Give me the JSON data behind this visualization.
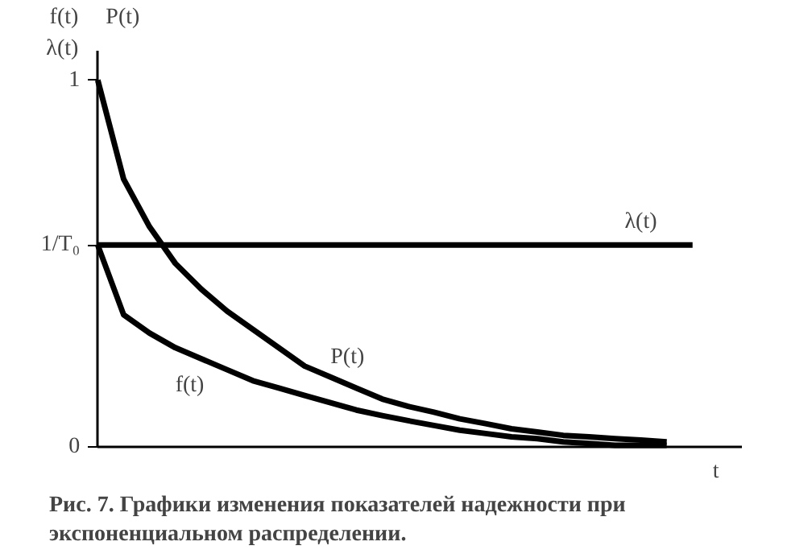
{
  "chart_data": {
    "type": "line",
    "xlabel": "t",
    "ylabel": "f(t)\nλ(t)",
    "categories": [
      null,
      null,
      null,
      null,
      null,
      null,
      null,
      null,
      null,
      null,
      null,
      null,
      null,
      null,
      null,
      null,
      null,
      null,
      null,
      null,
      null,
      null,
      null,
      null
    ],
    "series": [
      {
        "name": "P(t)",
        "color": "#000000",
        "values": [
          1.0,
          0.73,
          0.6,
          0.5,
          0.43,
          0.37,
          0.32,
          0.27,
          0.22,
          0.19,
          0.16,
          0.13,
          0.11,
          0.094,
          0.076,
          0.063,
          0.049,
          0.04,
          0.031,
          0.027,
          0.022,
          0.018,
          0.013,
          null
        ]
      },
      {
        "name": "f(t)",
        "color": "#000000",
        "values": [
          0.55,
          0.36,
          0.31,
          0.27,
          0.24,
          0.21,
          0.18,
          0.16,
          0.14,
          0.12,
          0.1,
          0.085,
          0.071,
          0.058,
          0.045,
          0.036,
          0.027,
          0.022,
          0.013,
          0.009,
          0.004,
          0.004,
          0.004,
          null
        ]
      },
      {
        "name": "λ(t)",
        "color": "#000000",
        "values": [
          0.55,
          0.55,
          0.55,
          0.55,
          0.55,
          0.55,
          0.55,
          0.55,
          0.55,
          0.55,
          0.55,
          0.55,
          0.55,
          0.55,
          0.55,
          0.55,
          0.55,
          0.55,
          0.55,
          0.55,
          0.55,
          0.55,
          0.55,
          0.55
        ]
      }
    ],
    "ylim": [
      0,
      1.08
    ],
    "yticks": [
      0,
      {
        "value": 0.55,
        "label": "1/T₀"
      },
      1
    ],
    "grid": false,
    "marker": "none",
    "line_style": "solid",
    "annotations": [
      "P(t)",
      "Рис. 7. Графики изменения показателей надежности при экспоненциальном распределении."
    ]
  }
}
